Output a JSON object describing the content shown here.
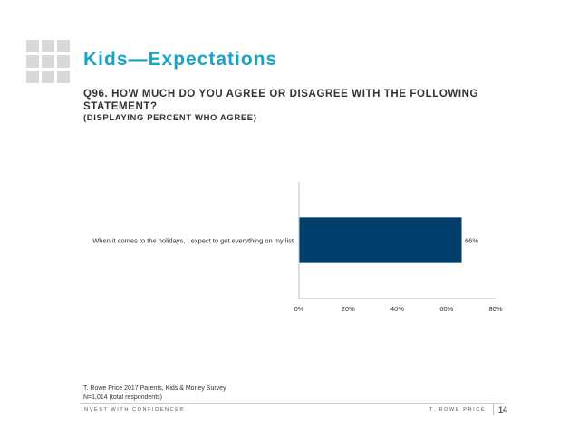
{
  "slide": {
    "title": "Kids—Expectations",
    "question": "Q96. HOW MUCH DO YOU AGREE OR DISAGREE WITH THE FOLLOWING STATEMENT?",
    "subquestion": "(DISPLAYING PERCENT WHO AGREE)"
  },
  "chart_data": {
    "type": "bar",
    "orientation": "horizontal",
    "categories": [
      "When it comes to the holidays, I expect to get everything on my list"
    ],
    "values": [
      66
    ],
    "value_labels": [
      "66%"
    ],
    "xlim": [
      0,
      80
    ],
    "xticks": [
      0,
      20,
      40,
      60,
      80
    ],
    "xtick_labels": [
      "0%",
      "20%",
      "40%",
      "60%",
      "80%"
    ],
    "bar_color": "#003f6b",
    "grid": false,
    "legend": "none",
    "title": "",
    "xlabel": "",
    "ylabel": ""
  },
  "footnote": {
    "line1": "T. Rowe Price 2017 Parents, Kids & Money Survey",
    "line2": "N=1,014 (total respondents)"
  },
  "footer": {
    "tagline": "INVEST WITH CONFIDENCE®",
    "brand": "T. ROWE PRICE",
    "page": "14"
  }
}
